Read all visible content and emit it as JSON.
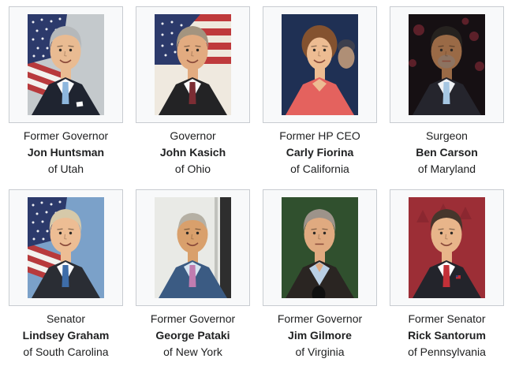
{
  "theme": {
    "page_bg": "#ffffff",
    "frame_border": "#c8ccd1",
    "frame_bg": "#f8f9fa",
    "text_color": "#202122"
  },
  "candidates": [
    {
      "title": "Former Governor",
      "name": "Jon Huntsman",
      "state": "of Utah",
      "portrait": {
        "bg": "#c4c9cc",
        "skin": "#e9bb92",
        "hair": "#b5b8ba",
        "suit": "#1f2430",
        "shirt": "#f8f8f8",
        "tie": "#8db6dd",
        "hair_style": "full",
        "expression": "smile",
        "extras": [
          "us-flag",
          "pocket-square"
        ]
      }
    },
    {
      "title": "Governor",
      "name": "John Kasich",
      "state": "of Ohio",
      "portrait": {
        "bg": "#efe9df",
        "skin": "#e2ab80",
        "hair": "#a3947f",
        "suit": "#232325",
        "shirt": "#fafafa",
        "tie": "#7c2d34",
        "hair_style": "full",
        "expression": "smile",
        "extras": [
          "ohio-flag"
        ]
      }
    },
    {
      "title": "Former HP CEO",
      "name": "Carly Fiorina",
      "state": "of California",
      "portrait": {
        "bg": "#1f3054",
        "skin": "#edbc92",
        "hair": "#84522f",
        "suit": "#e4625e",
        "hair_style": "long",
        "expression": "smile",
        "dress": true,
        "extras": [
          "blurred-face"
        ]
      }
    },
    {
      "title": "Surgeon",
      "name": "Ben Carson",
      "state": "of Maryland",
      "portrait": {
        "bg": "#161013",
        "skin": "#9a6a46",
        "hair": "#26221f",
        "suit": "#25252d",
        "shirt": "#eef1f4",
        "tie": "#a5c6e2",
        "hair_style": "full",
        "expression": "neutral",
        "extras": [
          "red-bokeh",
          "beard"
        ]
      }
    },
    {
      "title": "Senator",
      "name": "Lindsey Graham",
      "state": "of South Carolina",
      "portrait": {
        "bg": "#7ba1c9",
        "skin": "#edbd94",
        "hair": "#d6c9a9",
        "suit": "#2a2d34",
        "shirt": "#fbfbfb",
        "tie": "#3e6da9",
        "hair_style": "full",
        "expression": "smile",
        "extras": [
          "us-flag"
        ]
      }
    },
    {
      "title": "Former Governor",
      "name": "George Pataki",
      "state": "of New York",
      "portrait": {
        "bg": "#e9eae6",
        "skin": "#d9a06c",
        "hair": "#b5b0a4",
        "suit": "#3b5b83",
        "shirt": "#d6e4f0",
        "tie": "#c17cb0",
        "hair_style": "receding",
        "expression": "smile",
        "extras": [
          "dark-bar"
        ]
      }
    },
    {
      "title": "Former Governor",
      "name": "Jim Gilmore",
      "state": "of Virginia",
      "portrait": {
        "bg": "#30502e",
        "skin": "#e0aa80",
        "hair": "#9d938a",
        "suit": "#2a2522",
        "shirt": "#b9cfe4",
        "hair_style": "full",
        "expression": "neutral",
        "no_tie": true,
        "extras": [
          "microphone"
        ]
      }
    },
    {
      "title": "Former Senator",
      "name": "Rick Santorum",
      "state": "of Pennsylvania",
      "portrait": {
        "bg": "#9c2e36",
        "skin": "#e8b58a",
        "hair": "#46362c",
        "suit": "#23242b",
        "shirt": "#ffffff",
        "tie": "#c23038",
        "hair_style": "full",
        "expression": "smile",
        "extras": [
          "flag-pin",
          "maroon-logo"
        ]
      }
    }
  ]
}
